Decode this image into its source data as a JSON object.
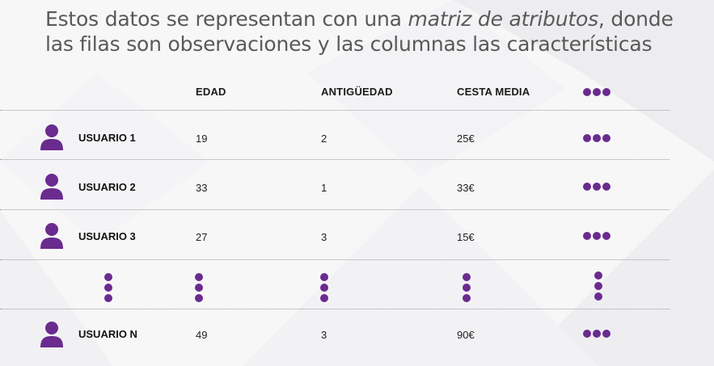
{
  "title": {
    "part1": "Estos datos se representan con una ",
    "italic": "matriz de atributos",
    "part2": ", donde las filas son observaciones y las columnas las características"
  },
  "table": {
    "headers": [
      "EDAD",
      "ANTIGÜEDAD",
      "CESTA MEDIA"
    ],
    "rows": [
      {
        "label": "USUARIO 1",
        "edad": "19",
        "antiguedad": "2",
        "cesta": "25€"
      },
      {
        "label": "USUARIO 2",
        "edad": "33",
        "antiguedad": "1",
        "cesta": "33€"
      },
      {
        "label": "USUARIO 3",
        "edad": "27",
        "antiguedad": "3",
        "cesta": "15€"
      },
      {
        "label": "USUARIO N",
        "edad": "49",
        "antiguedad": "3",
        "cesta": "90€"
      }
    ]
  },
  "colors": {
    "accent": "#6a2b8f",
    "title_text": "#595959",
    "background": "#f7f7f8"
  },
  "icons": {
    "row_icon": "user-icon",
    "more_columns": "ellipsis-horizontal-icon",
    "more_rows": "ellipsis-vertical-icon"
  }
}
